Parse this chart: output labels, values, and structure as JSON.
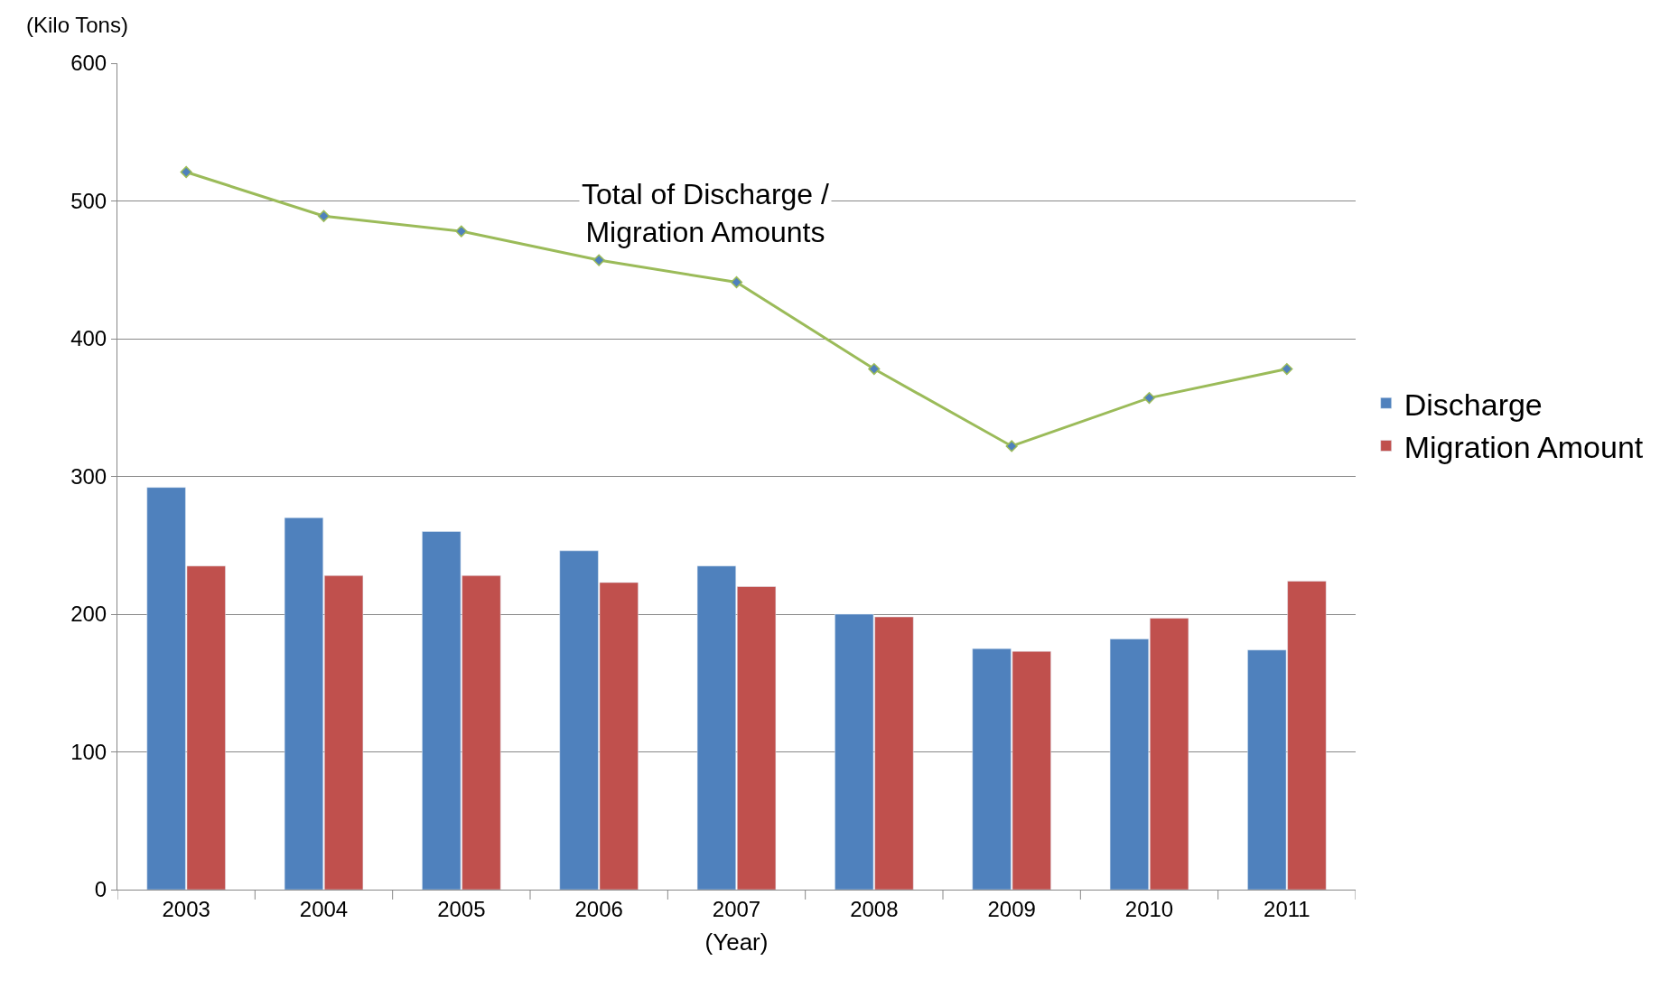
{
  "chart_data": {
    "type": "bar",
    "categories": [
      "2003",
      "2004",
      "2005",
      "2006",
      "2007",
      "2008",
      "2009",
      "2010",
      "2011"
    ],
    "xlabel": "(Year)",
    "ylabel": "(Kilo Tons)",
    "series": [
      {
        "name": "Discharge",
        "color": "#4f81bd",
        "values": [
          292,
          270,
          260,
          246,
          235,
          200,
          175,
          182,
          174
        ]
      },
      {
        "name": "Migration Amount",
        "color": "#c0504d",
        "values": [
          235,
          228,
          228,
          223,
          220,
          198,
          173,
          197,
          224
        ]
      },
      {
        "type": "line",
        "color": "#9bbb59",
        "marker": "diamond",
        "values": [
          521,
          489,
          478,
          457,
          441,
          378,
          322,
          357,
          378
        ]
      }
    ],
    "annotations": [
      "Total of Discharge / Migration Amounts"
    ],
    "ylim": [
      0,
      600
    ],
    "yticks": [
      0,
      100,
      200,
      300,
      400,
      500,
      600
    ],
    "grid": "y",
    "legend": "right"
  }
}
